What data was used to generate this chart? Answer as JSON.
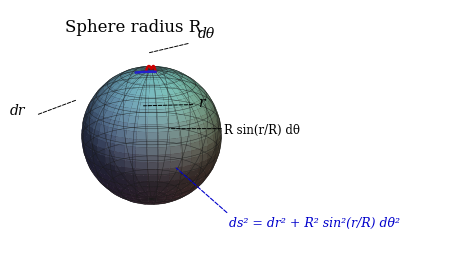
{
  "title": "Sphere radius R",
  "title_fontsize": 12,
  "title_color": "#000000",
  "bg_color": "#ffffff",
  "grid_color": "#1a1a1a",
  "label_dr": "dr",
  "label_dtheta": "dθ",
  "label_r": "r",
  "label_arc": "R sin(r/R) dθ",
  "label_metric": "ds² = dr² + R² sin²(r/R) dθ²",
  "metric_color": "#0000cc",
  "arrow_color_red": "#cc0000",
  "arrow_color_blue": "#2222cc",
  "figsize": [
    4.77,
    2.68
  ],
  "dpi": 100,
  "elev": 20,
  "azim": -65
}
